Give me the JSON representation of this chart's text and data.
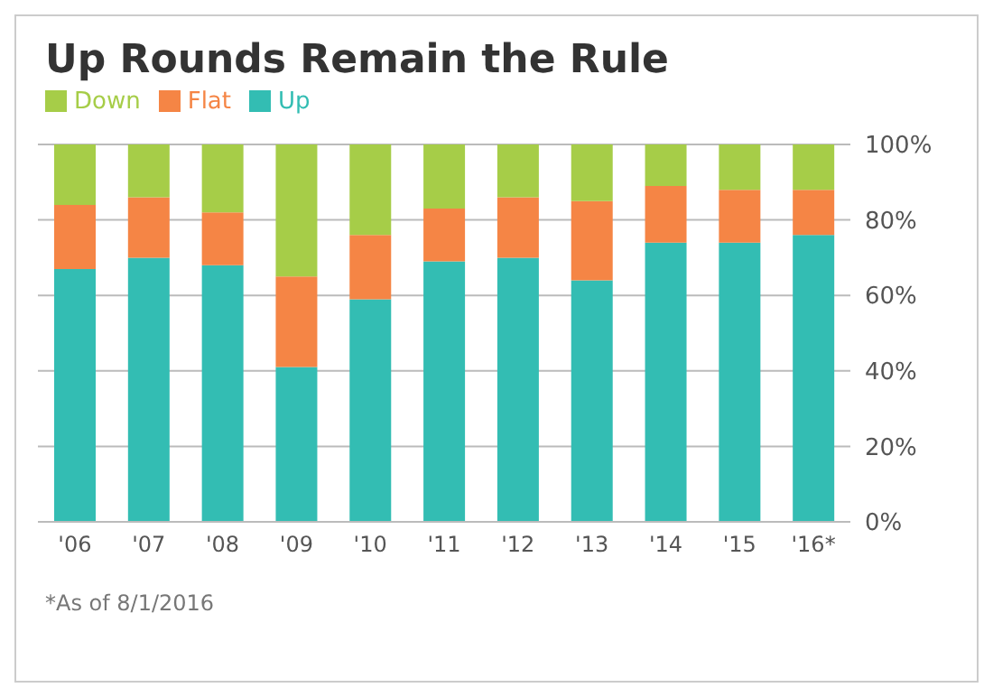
{
  "chart_data": {
    "type": "bar",
    "title": "Up Rounds Remain the Rule",
    "categories": [
      "'06",
      "'07",
      "'08",
      "'09",
      "'10",
      "'11",
      "'12",
      "'13",
      "'14",
      "'15",
      "'16*"
    ],
    "series": [
      {
        "name": "Up",
        "color": "#33bdb3",
        "values": [
          67,
          70,
          68,
          41,
          59,
          69,
          70,
          64,
          74,
          74,
          76
        ]
      },
      {
        "name": "Flat",
        "color": "#f58545",
        "values": [
          17,
          16,
          14,
          24,
          17,
          14,
          16,
          21,
          15,
          14,
          12
        ]
      },
      {
        "name": "Down",
        "color": "#a6cd48",
        "values": [
          16,
          14,
          18,
          35,
          24,
          17,
          14,
          15,
          11,
          12,
          12
        ]
      }
    ],
    "stacked": true,
    "ylim": [
      0,
      100
    ],
    "yticks": [
      {
        "value": 0,
        "label": "0%"
      },
      {
        "value": 20,
        "label": "20%"
      },
      {
        "value": 40,
        "label": "40%"
      },
      {
        "value": 60,
        "label": "60%"
      },
      {
        "value": 80,
        "label": "80%"
      },
      {
        "value": 100,
        "label": "100%"
      }
    ],
    "grid": "y",
    "legend": "top left",
    "annotations": [
      "*As of 8/1/2016"
    ]
  }
}
